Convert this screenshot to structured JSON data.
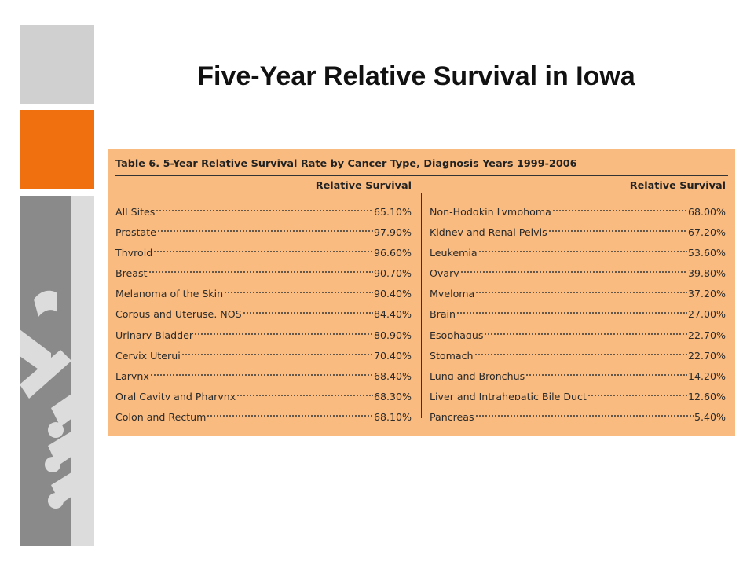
{
  "slide": {
    "title": "Five-Year Relative Survival in Iowa"
  },
  "table": {
    "caption": "Table 6. 5-Year Relative Survival Rate by Cancer Type, Diagnosis Years 1999-2006",
    "left_header": "Relative Survival",
    "right_header": "Relative Survival",
    "left_rows": [
      {
        "name": "All Sites",
        "value": "65.10%"
      },
      {
        "name": "Prostate",
        "value": "97.90%"
      },
      {
        "name": "Thyroid",
        "value": "96.60%"
      },
      {
        "name": "Breast",
        "value": "90.70%"
      },
      {
        "name": "Melanoma of the Skin",
        "value": "90.40%"
      },
      {
        "name": "Corpus and Uteruse, NOS",
        "value": "84.40%"
      },
      {
        "name": "Urinary Bladder",
        "value": "80.90%"
      },
      {
        "name": "Cervix Uterui",
        "value": "70.40%"
      },
      {
        "name": "Larynx",
        "value": "68.40%"
      },
      {
        "name": "Oral Cavity and Pharynx",
        "value": "68.30%"
      },
      {
        "name": "Colon and Rectum",
        "value": "68.10%"
      }
    ],
    "right_rows": [
      {
        "name": "Non-Hodgkin Lymphoma",
        "value": "68.00%"
      },
      {
        "name": "Kidney and Renal Pelvis",
        "value": "67.20%"
      },
      {
        "name": "Leukemia",
        "value": "53.60%"
      },
      {
        "name": "Ovary",
        "value": "39.80%"
      },
      {
        "name": "Myeloma",
        "value": "37.20%"
      },
      {
        "name": "Brain",
        "value": "27.00%"
      },
      {
        "name": "Esophagus",
        "value": "22.70%"
      },
      {
        "name": "Stomach",
        "value": "22.70%"
      },
      {
        "name": "Lung and Bronchus",
        "value": "14.20%"
      },
      {
        "name": "Liver and Intrahepatic Bile Duct",
        "value": "12.60%"
      },
      {
        "name": "Pancreas",
        "value": "5.40%"
      }
    ]
  },
  "colors": {
    "accent_orange": "#f07010",
    "light_gray": "#d0d0d0",
    "dark_gray": "#8a8a8a",
    "table_background": "#f9bb7f"
  }
}
